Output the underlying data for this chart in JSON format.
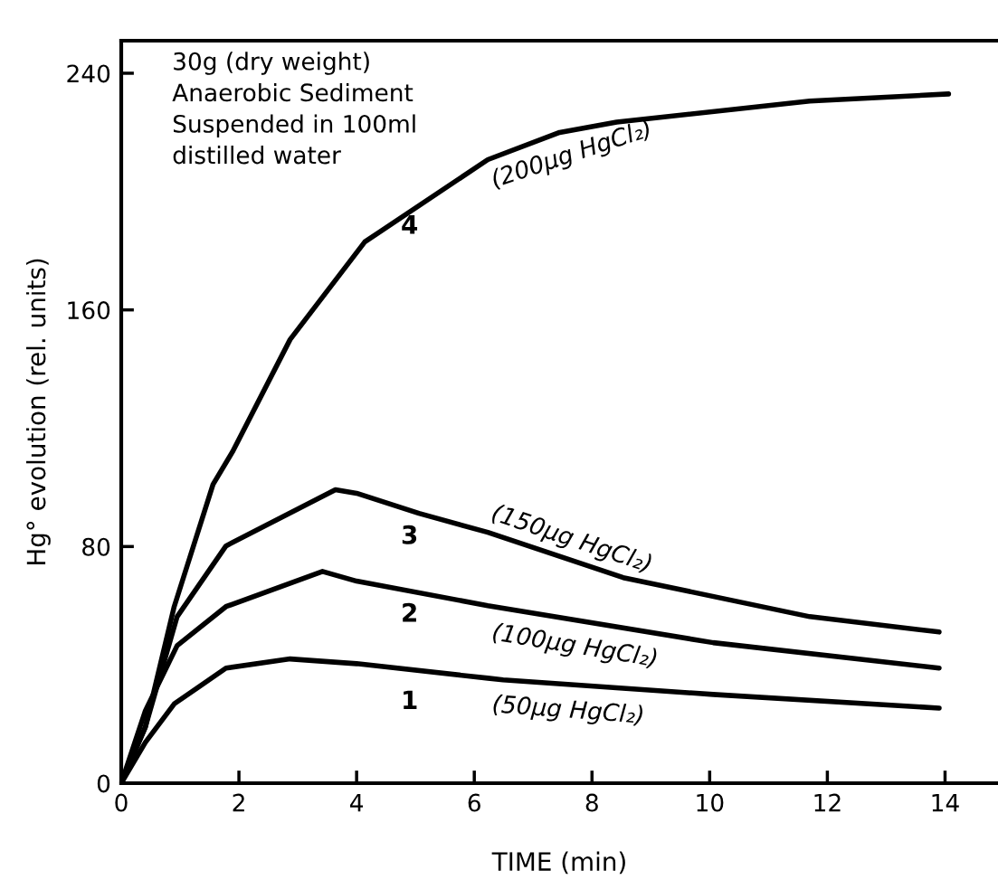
{
  "chart_data": {
    "type": "line",
    "xlabel": "TIME (min)",
    "ylabel": "Hg° evolution (rel. units)",
    "xlim": [
      0,
      14.9
    ],
    "ylim": [
      0,
      251
    ],
    "xticks": [
      0,
      2,
      4,
      6,
      8,
      10,
      12,
      14
    ],
    "yticks": [
      0,
      80,
      160,
      240
    ],
    "grid": false,
    "legend": false,
    "marker": "none",
    "line_style": "solid",
    "series": [
      {
        "name": "(50μg HgCl₂)",
        "color": "#000000",
        "x": [
          0,
          0.41,
          0.9,
          1.78,
          2.87,
          4.0,
          6.23,
          6.49,
          10.06,
          13.9
        ],
        "values": [
          0,
          13.8,
          26.8,
          38.9,
          42,
          40.4,
          35.5,
          34.9,
          30,
          25.4
        ]
      },
      {
        "name": "(100μg HgCl₂)",
        "color": "#000000",
        "x": [
          0,
          0.41,
          0.95,
          1.78,
          3.42,
          4.0,
          6.23,
          10.06,
          13.9
        ],
        "values": [
          0,
          24.5,
          46.5,
          59.7,
          71.6,
          68.3,
          60,
          47.5,
          38.9
        ]
      },
      {
        "name": "(150μg HgCl₂)",
        "color": "#000000",
        "x": [
          0,
          0.41,
          0.95,
          1.78,
          3.64,
          4.0,
          5.06,
          6.23,
          8.53,
          11.7,
          13.9
        ],
        "values": [
          0,
          19,
          56.3,
          80.2,
          99.2,
          98,
          91.2,
          84.8,
          69.5,
          56.3,
          51.1
        ]
      },
      {
        "name": "(200μg HgCl₂)",
        "color": "#000000",
        "x": [
          0,
          0.41,
          0.9,
          1.56,
          1.89,
          2.87,
          4.14,
          6.23,
          7.45,
          8.42,
          11.7,
          14.06
        ],
        "values": [
          0,
          19,
          59.7,
          101,
          112,
          150,
          183,
          210.8,
          220,
          223.5,
          230.6,
          233
        ]
      }
    ],
    "annotations": [
      "30g (dry weight)\nAnaerobic Sediment\nSuspended in 100ml\ndistilled water",
      "1",
      "2",
      "3",
      "4"
    ]
  }
}
